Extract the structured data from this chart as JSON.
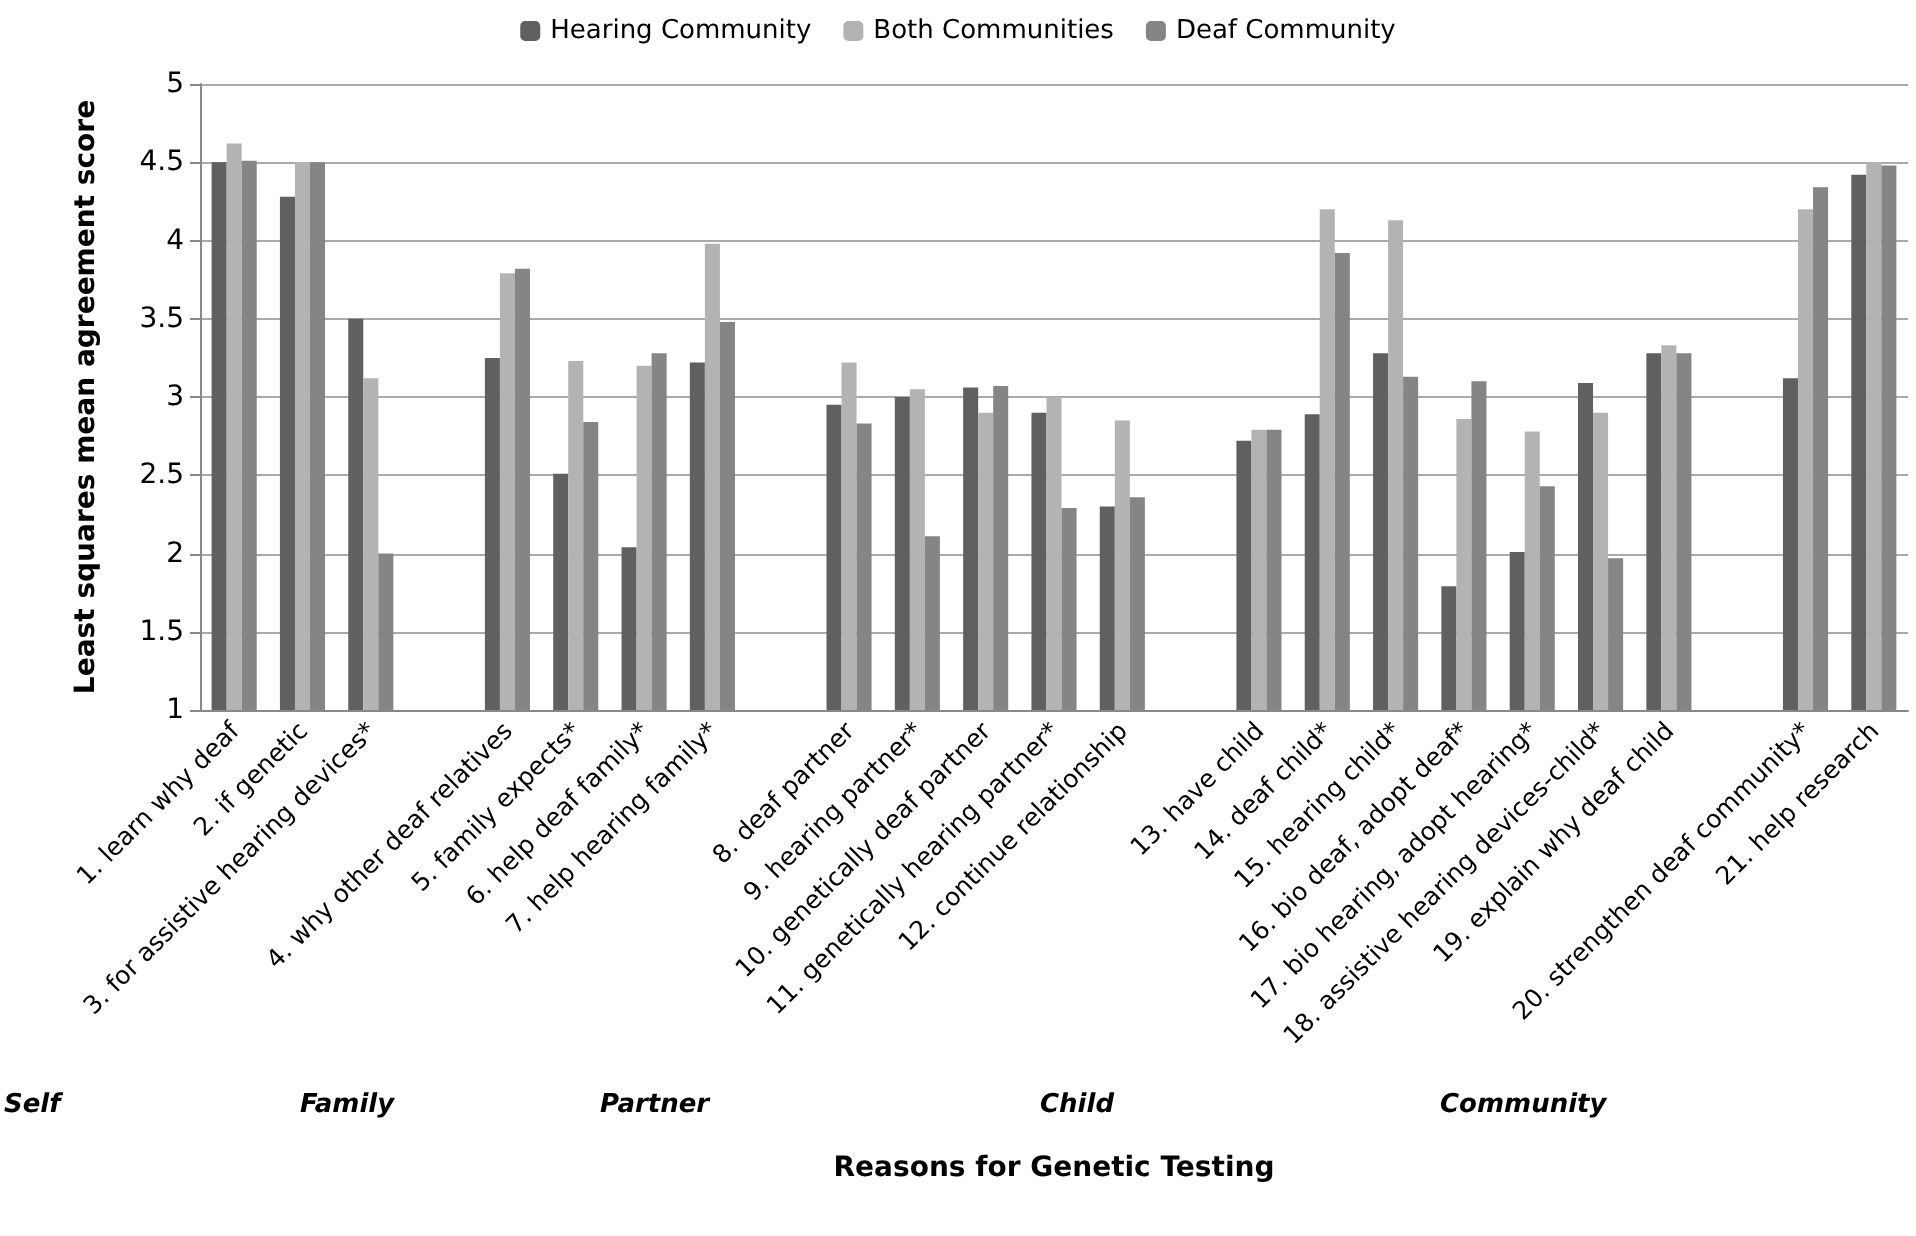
{
  "chart_data": {
    "type": "bar",
    "xlabel": "Reasons for Genetic Testing",
    "ylabel": "Least squares mean agreement score",
    "categories": [
      "1. learn why deaf",
      "2. if genetic",
      "3. for assistive hearing devices*",
      null,
      "4. why other deaf relatives",
      "5. family expects*",
      "6. help deaf family*",
      "7. help hearing family*",
      null,
      "8. deaf partner",
      "9. hearing partner*",
      "10. genetically deaf partner",
      "11. genetically hearing partner*",
      "12. continue relationship",
      null,
      "13. have child",
      "14. deaf child*",
      "15. hearing child*",
      "16. bio deaf, adopt deaf*",
      "17. bio hearing, adopt hearing*",
      "18. assistive hearing devices-child*",
      "19. explain why deaf child",
      null,
      "20. strengthen deaf community*",
      "21. help research"
    ],
    "series": [
      {
        "name": "Hearing Community",
        "color": "#606060",
        "values": [
          4.5,
          4.28,
          3.5,
          null,
          3.25,
          2.51,
          2.04,
          3.22,
          null,
          2.95,
          3.0,
          3.06,
          2.9,
          2.3,
          null,
          2.72,
          2.89,
          3.28,
          1.79,
          2.01,
          3.09,
          3.28,
          null,
          3.12,
          4.42
        ]
      },
      {
        "name": "Both Communities",
        "color": "#b3b3b3",
        "values": [
          4.62,
          4.5,
          3.12,
          null,
          3.79,
          3.23,
          3.2,
          3.98,
          null,
          3.22,
          3.05,
          2.9,
          3.0,
          2.85,
          null,
          2.79,
          4.2,
          4.13,
          2.86,
          2.78,
          2.9,
          3.33,
          null,
          4.2,
          4.5
        ]
      },
      {
        "name": "Deaf Community",
        "color": "#858585",
        "values": [
          4.51,
          4.5,
          2.0,
          null,
          3.82,
          2.84,
          3.28,
          3.48,
          null,
          2.83,
          2.11,
          3.07,
          2.29,
          2.36,
          null,
          2.79,
          3.92,
          3.13,
          3.1,
          2.43,
          1.97,
          3.28,
          null,
          4.34,
          4.48
        ]
      }
    ],
    "ylim": [
      1,
      5
    ],
    "yticks": [
      1,
      1.5,
      2,
      2.5,
      3,
      3.5,
      4,
      4.5,
      5
    ],
    "grid": "y",
    "legend": "top",
    "annotations": [
      "Self",
      "Family",
      "Partner",
      "Child",
      "Community"
    ]
  }
}
